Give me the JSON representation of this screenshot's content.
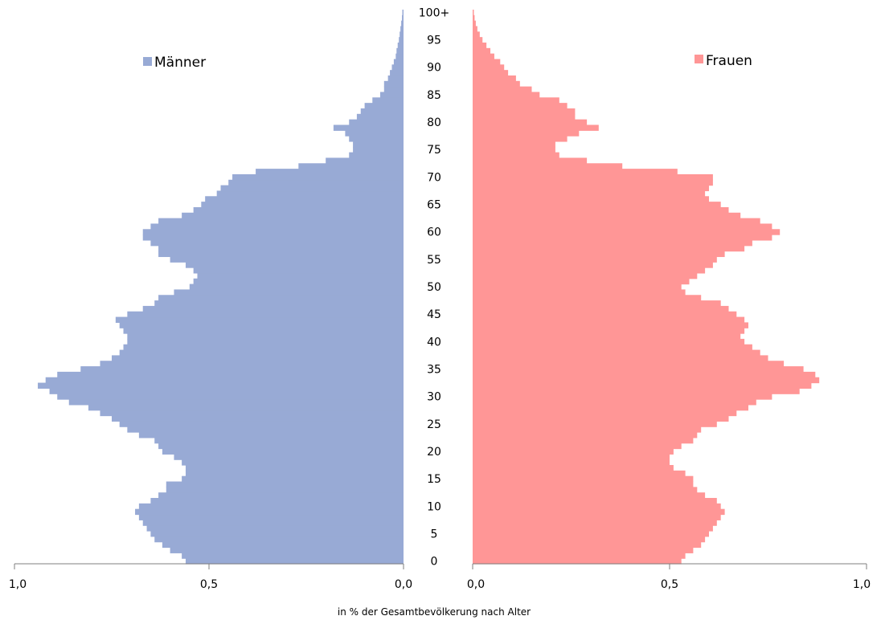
{
  "chart_data": {
    "type": "bar",
    "subtype": "population-pyramid",
    "title": "",
    "xlabel": "in % der Gesamtbevölkerung nach Alter",
    "ylabel": "",
    "xlim": [
      0,
      1.0
    ],
    "x_tick_labels_left": [
      "1,0",
      "0,5",
      "0,0"
    ],
    "x_tick_labels_right": [
      "0,0",
      "0,5",
      "1,0"
    ],
    "age_tick_labels": [
      "0",
      "5",
      "10",
      "15",
      "20",
      "25",
      "30",
      "35",
      "40",
      "45",
      "50",
      "55",
      "60",
      "65",
      "70",
      "75",
      "80",
      "85",
      "90",
      "95",
      "100+"
    ],
    "grid": false,
    "legend": [
      {
        "name": "Männer",
        "color": "#98aad5",
        "position": "top-left"
      },
      {
        "name": "Frauen",
        "color": "#ff9696",
        "position": "top-right"
      }
    ],
    "series": [
      {
        "name": "Männer",
        "color": "#98aad5",
        "values": [
          0.56,
          0.57,
          0.6,
          0.62,
          0.64,
          0.65,
          0.66,
          0.67,
          0.68,
          0.69,
          0.68,
          0.65,
          0.63,
          0.61,
          0.61,
          0.57,
          0.56,
          0.56,
          0.57,
          0.59,
          0.62,
          0.63,
          0.64,
          0.68,
          0.71,
          0.73,
          0.75,
          0.78,
          0.81,
          0.86,
          0.89,
          0.91,
          0.94,
          0.92,
          0.89,
          0.83,
          0.78,
          0.75,
          0.73,
          0.72,
          0.71,
          0.71,
          0.72,
          0.73,
          0.74,
          0.71,
          0.67,
          0.64,
          0.63,
          0.59,
          0.55,
          0.54,
          0.53,
          0.54,
          0.56,
          0.6,
          0.63,
          0.63,
          0.65,
          0.67,
          0.67,
          0.65,
          0.63,
          0.57,
          0.54,
          0.52,
          0.51,
          0.48,
          0.47,
          0.45,
          0.44,
          0.38,
          0.27,
          0.2,
          0.14,
          0.13,
          0.13,
          0.14,
          0.15,
          0.18,
          0.14,
          0.12,
          0.11,
          0.1,
          0.08,
          0.06,
          0.05,
          0.05,
          0.04,
          0.035,
          0.03,
          0.025,
          0.02,
          0.018,
          0.015,
          0.012,
          0.01,
          0.008,
          0.006,
          0.004,
          0.003
        ]
      },
      {
        "name": "Frauen",
        "color": "#ff9696",
        "values": [
          0.53,
          0.54,
          0.56,
          0.58,
          0.59,
          0.6,
          0.61,
          0.62,
          0.63,
          0.64,
          0.63,
          0.62,
          0.59,
          0.57,
          0.56,
          0.56,
          0.54,
          0.51,
          0.5,
          0.5,
          0.51,
          0.53,
          0.56,
          0.57,
          0.58,
          0.62,
          0.65,
          0.67,
          0.7,
          0.72,
          0.76,
          0.83,
          0.86,
          0.88,
          0.87,
          0.84,
          0.79,
          0.75,
          0.73,
          0.71,
          0.69,
          0.68,
          0.69,
          0.7,
          0.69,
          0.67,
          0.65,
          0.63,
          0.58,
          0.54,
          0.53,
          0.55,
          0.57,
          0.59,
          0.61,
          0.62,
          0.64,
          0.69,
          0.71,
          0.76,
          0.78,
          0.76,
          0.73,
          0.68,
          0.65,
          0.63,
          0.6,
          0.59,
          0.6,
          0.61,
          0.61,
          0.52,
          0.38,
          0.29,
          0.22,
          0.21,
          0.21,
          0.24,
          0.27,
          0.32,
          0.29,
          0.26,
          0.26,
          0.24,
          0.22,
          0.17,
          0.15,
          0.12,
          0.11,
          0.09,
          0.08,
          0.07,
          0.055,
          0.045,
          0.035,
          0.025,
          0.018,
          0.012,
          0.008,
          0.005,
          0.003
        ]
      }
    ]
  }
}
